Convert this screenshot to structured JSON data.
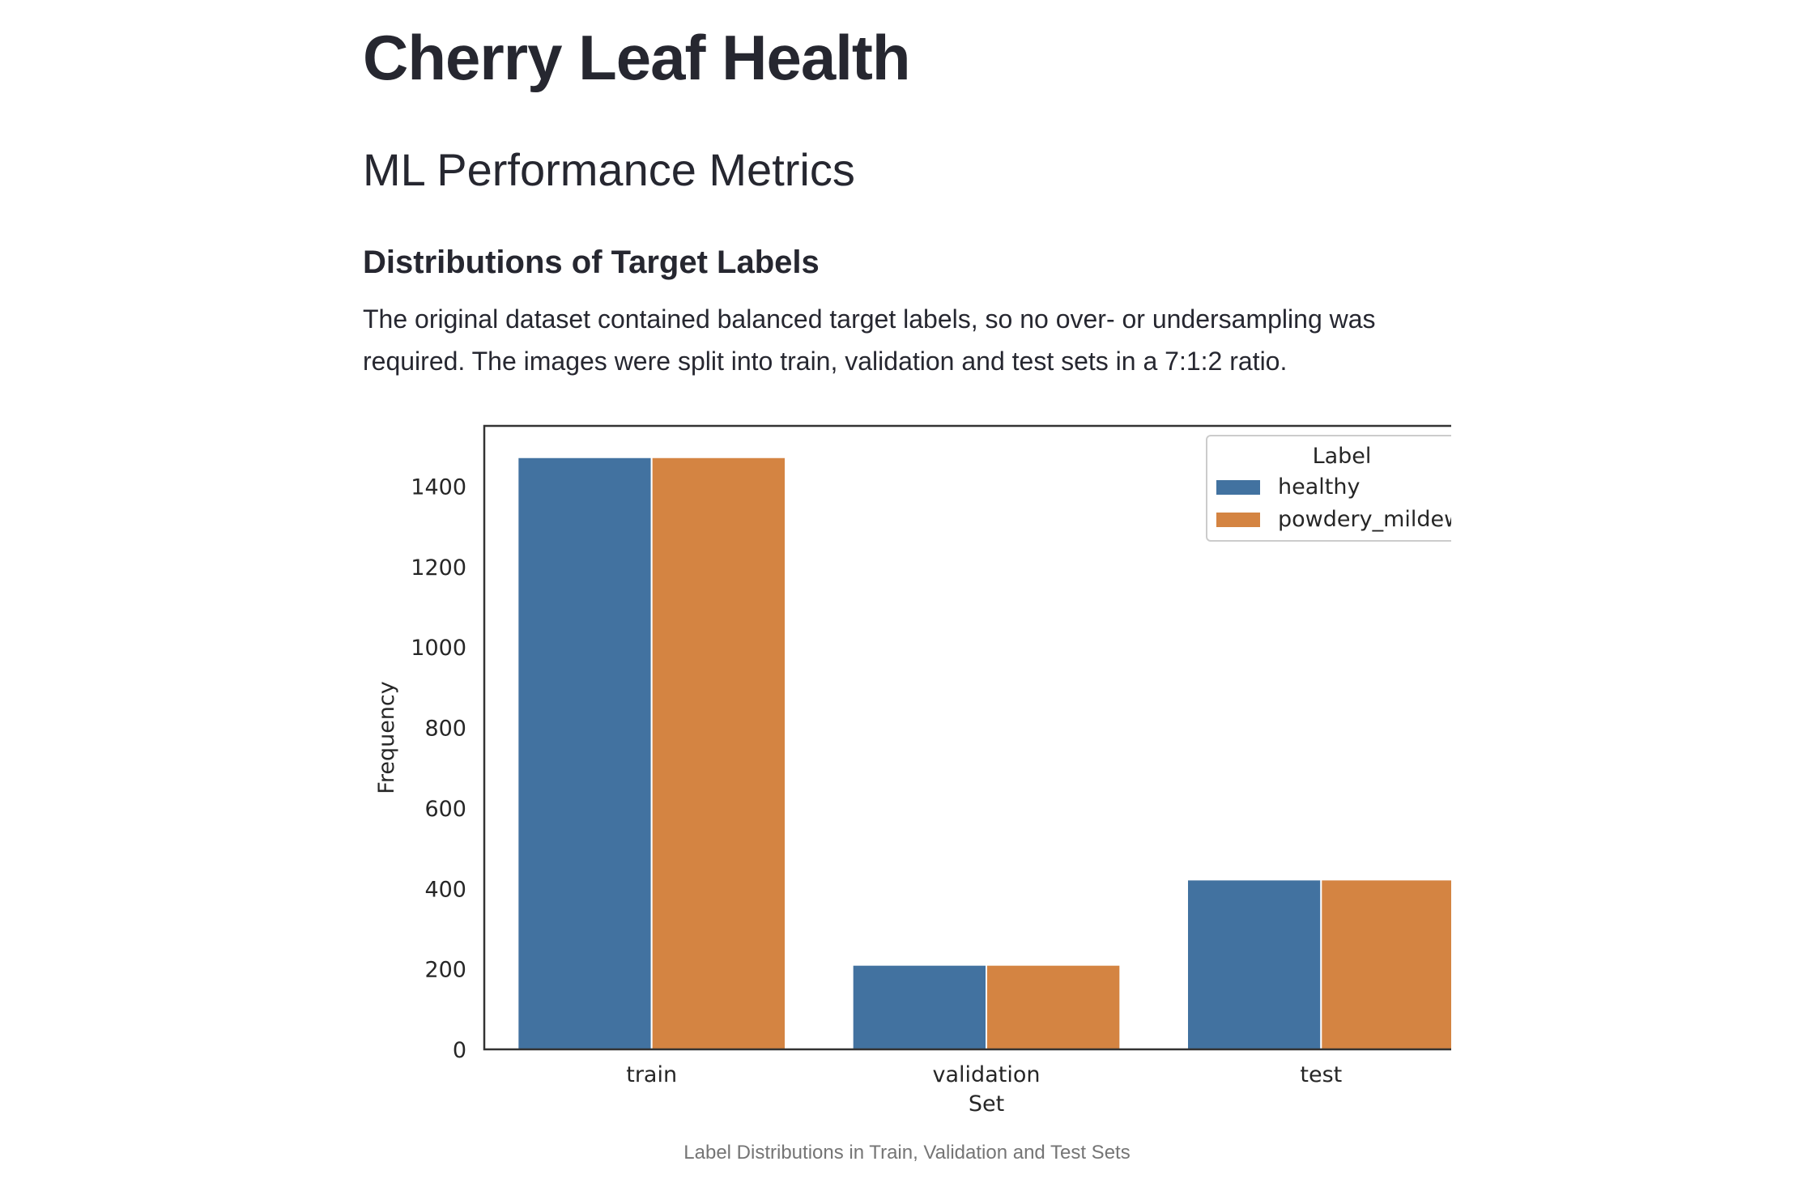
{
  "page": {
    "title": "Cherry Leaf Health",
    "subtitle": "ML Performance Metrics",
    "section_heading": "Distributions of Target Labels",
    "body_text": "The original dataset contained balanced target labels, so no over- or undersampling was required. The images were split into train, validation and test sets in a 7:1:2 ratio.",
    "caption": "Label Distributions in Train, Validation and Test Sets"
  },
  "chart_data": {
    "type": "bar",
    "categories": [
      "train",
      "validation",
      "test"
    ],
    "series": [
      {
        "name": "healthy",
        "values": [
          1472,
          210,
          422
        ],
        "color": "#4272a0"
      },
      {
        "name": "powdery_mildew",
        "values": [
          1472,
          210,
          422
        ],
        "color": "#d48442"
      }
    ],
    "xlabel": "Set",
    "ylabel": "Frequency",
    "ylim": [
      0,
      1550
    ],
    "yticks": [
      0,
      200,
      400,
      600,
      800,
      1000,
      1200,
      1400
    ],
    "legend_title": "Label",
    "legend_position": "top-right",
    "grid": false
  }
}
